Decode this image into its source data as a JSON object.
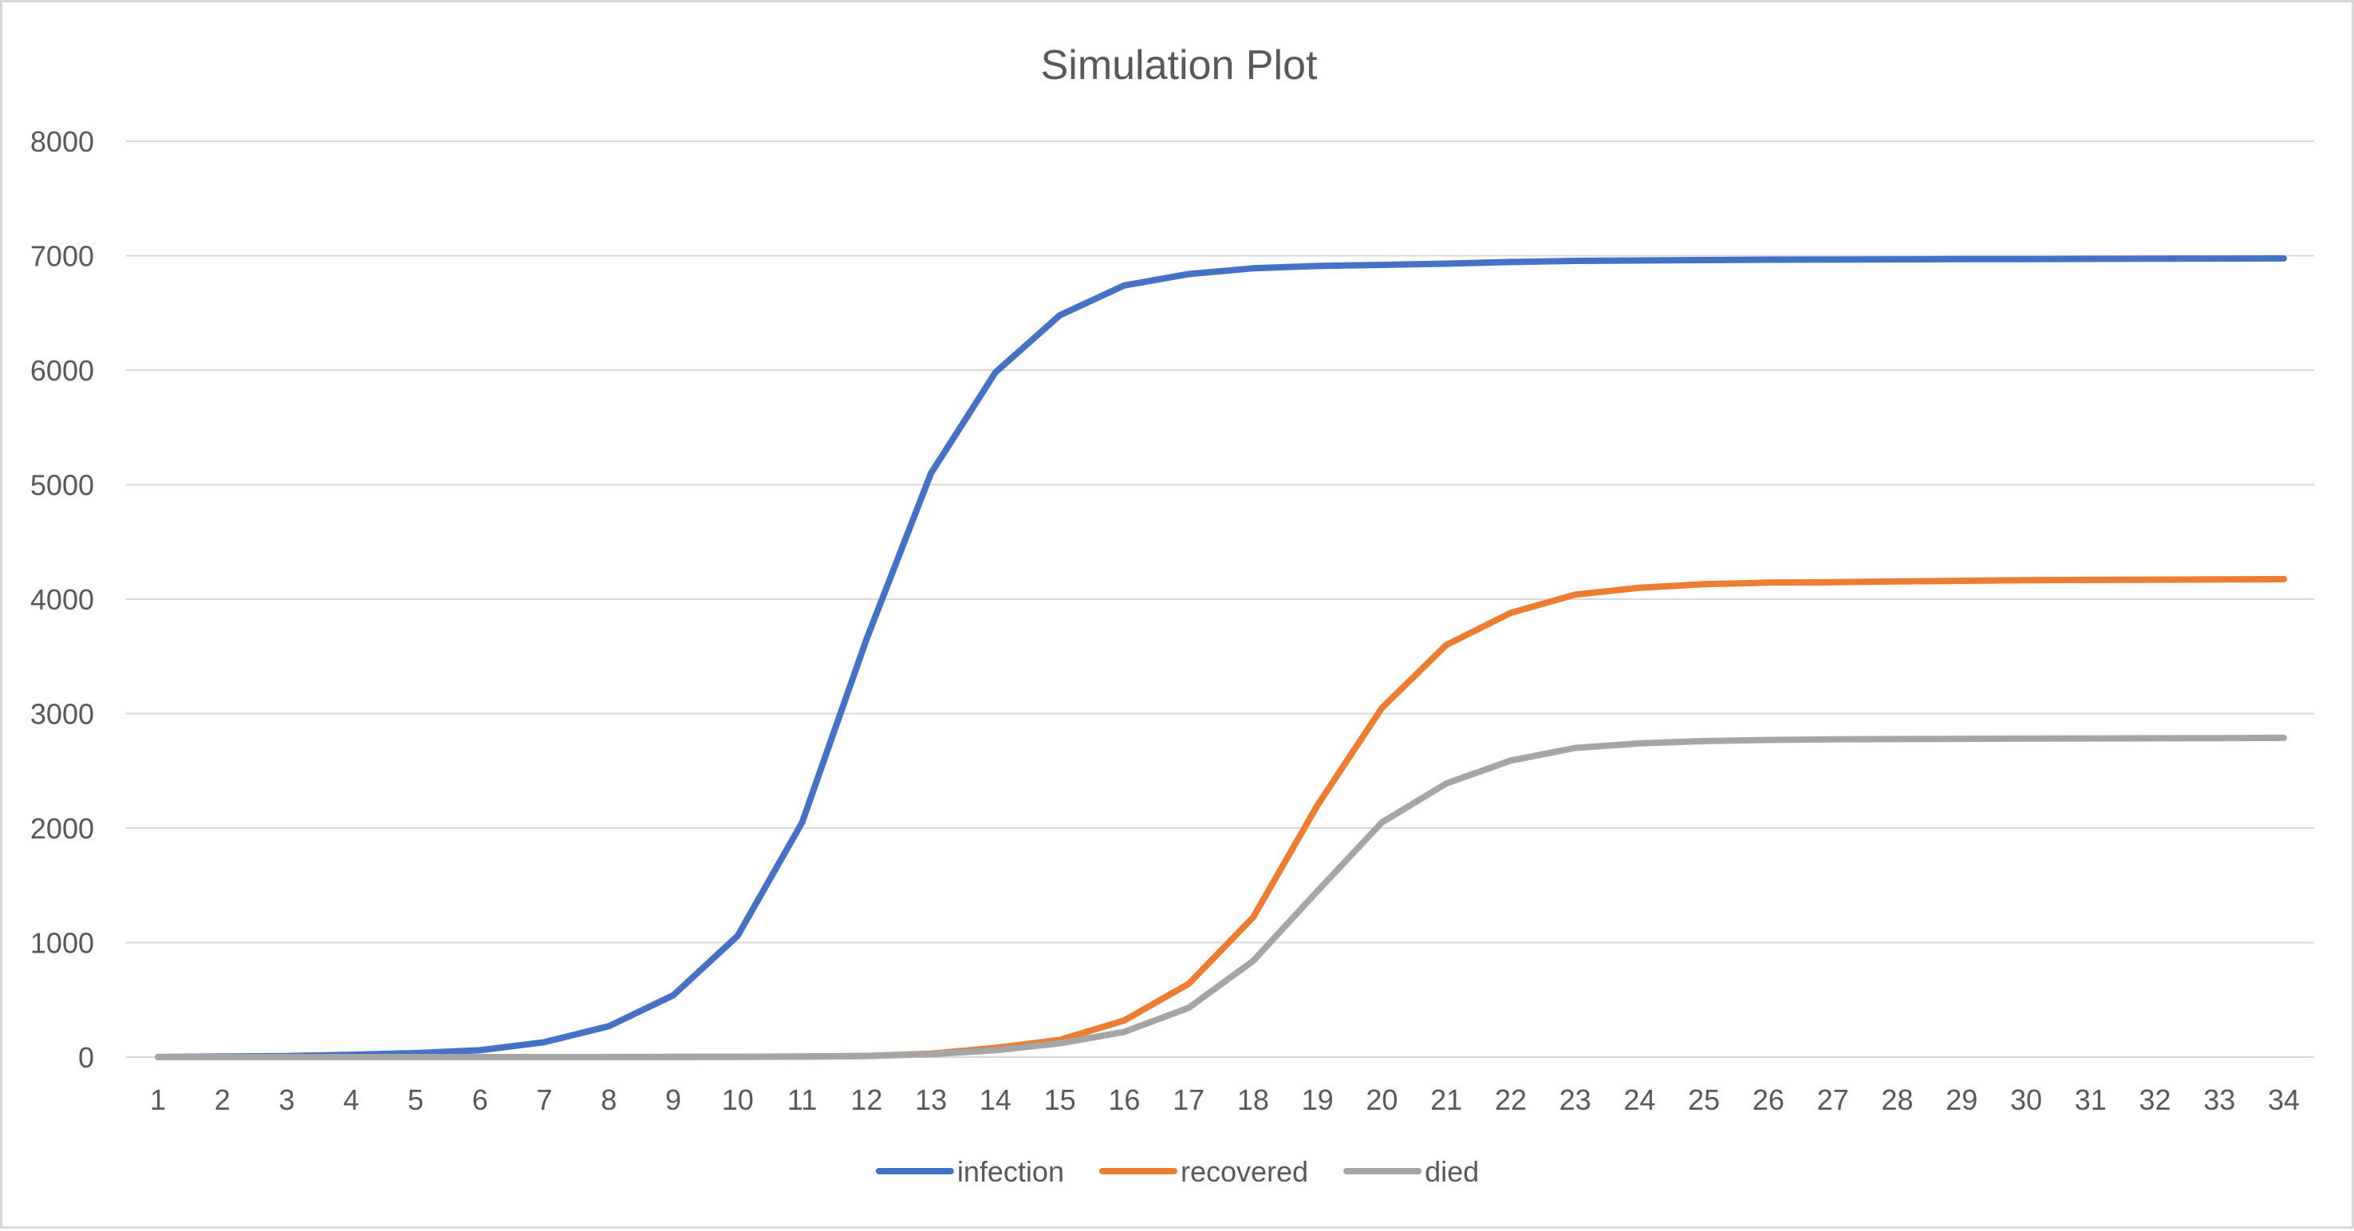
{
  "chart_data": {
    "type": "line",
    "title": "Simulation Plot",
    "xlabel": "",
    "ylabel": "",
    "ylim": [
      0,
      8000
    ],
    "yticks": [
      0,
      1000,
      2000,
      3000,
      4000,
      5000,
      6000,
      7000,
      8000
    ],
    "grid": true,
    "legend_position": "bottom",
    "categories": [
      "1",
      "2",
      "3",
      "4",
      "5",
      "6",
      "7",
      "8",
      "9",
      "10",
      "11",
      "12",
      "13",
      "14",
      "15",
      "16",
      "17",
      "18",
      "19",
      "20",
      "21",
      "22",
      "23",
      "24",
      "25",
      "26",
      "27",
      "28",
      "29",
      "30",
      "31",
      "32",
      "33",
      "34"
    ],
    "series": [
      {
        "name": "infection",
        "color": "#4472c4",
        "values": [
          1,
          5,
          9,
          20,
          35,
          60,
          130,
          270,
          540,
          1060,
          2050,
          3650,
          5100,
          5980,
          6480,
          6740,
          6840,
          6890,
          6910,
          6920,
          6930,
          6945,
          6955,
          6958,
          6962,
          6965,
          6966,
          6968,
          6970,
          6971,
          6972,
          6974,
          6975,
          6976
        ]
      },
      {
        "name": "recovered",
        "color": "#ed7d31",
        "values": [
          0,
          0,
          0,
          0,
          0,
          0,
          0,
          0,
          2,
          3,
          5,
          10,
          30,
          80,
          150,
          320,
          640,
          1220,
          2200,
          3050,
          3600,
          3880,
          4040,
          4100,
          4130,
          4145,
          4148,
          4155,
          4160,
          4165,
          4168,
          4170,
          4172,
          4175
        ]
      },
      {
        "name": "died",
        "color": "#a5a5a5",
        "values": [
          0,
          0,
          0,
          0,
          0,
          0,
          0,
          0,
          1,
          2,
          4,
          10,
          25,
          60,
          120,
          220,
          430,
          840,
          1450,
          2050,
          2390,
          2590,
          2700,
          2740,
          2760,
          2770,
          2775,
          2778,
          2780,
          2782,
          2783,
          2785,
          2786,
          2788
        ]
      }
    ]
  }
}
